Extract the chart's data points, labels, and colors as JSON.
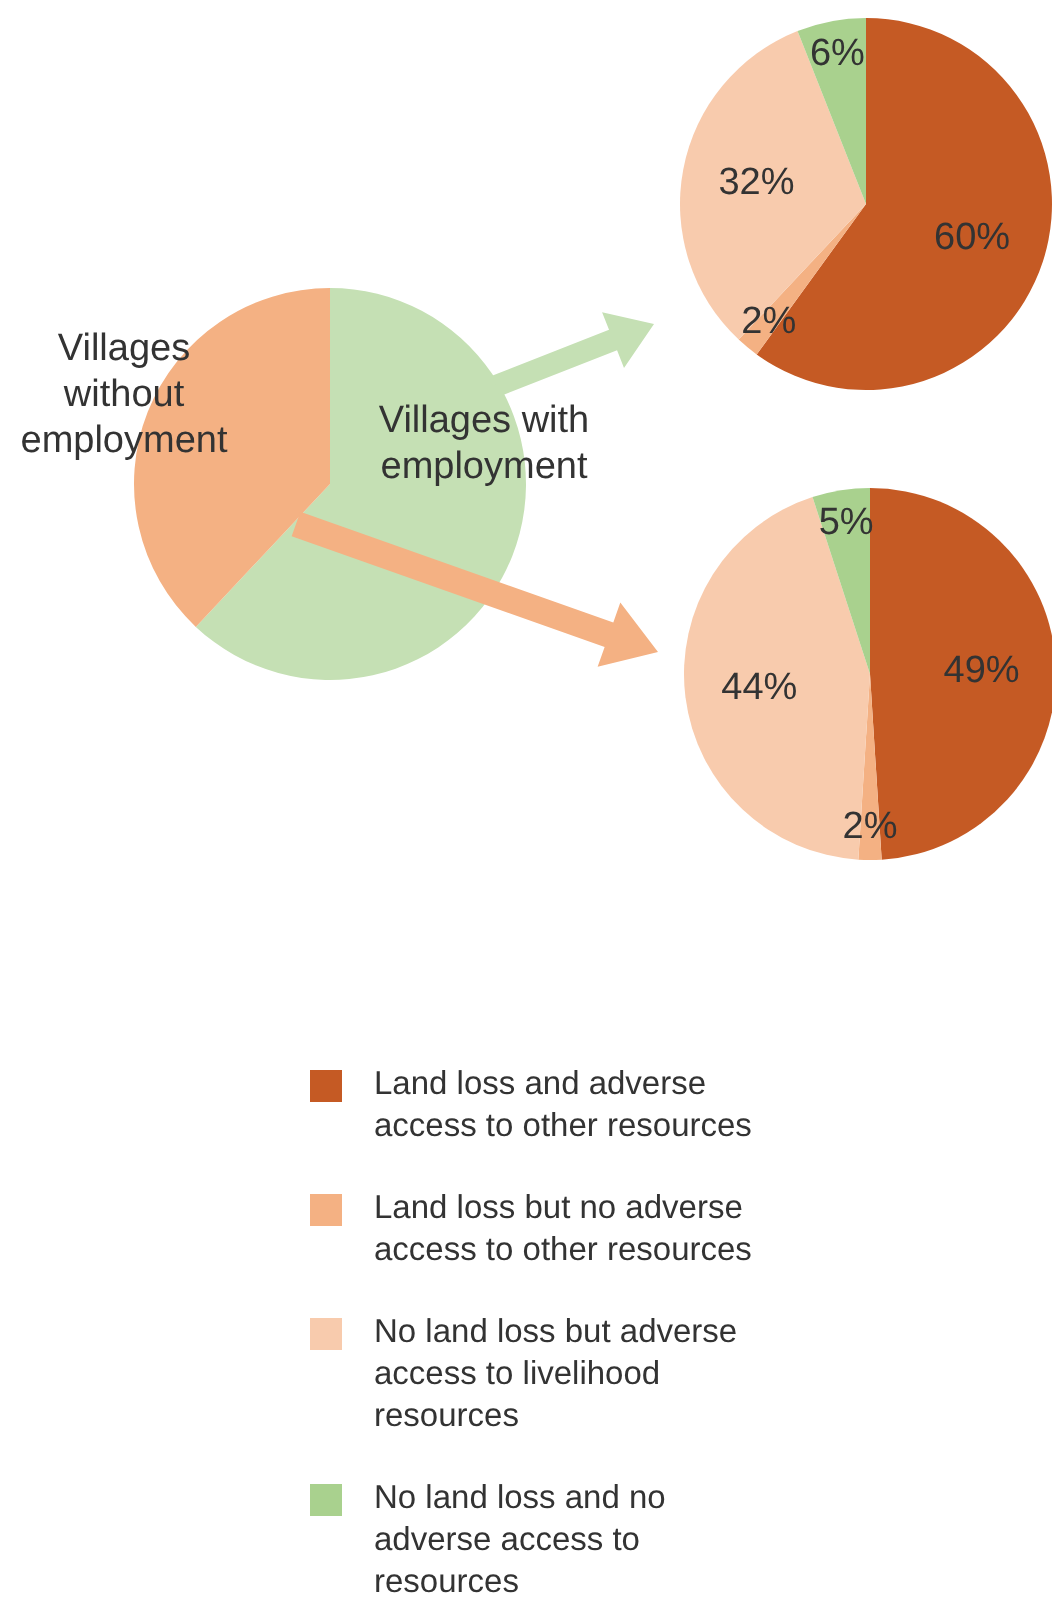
{
  "chart_data": [
    {
      "type": "pie",
      "categories": [
        "Villages with employment",
        "Villages without employment"
      ],
      "values": [
        62,
        38
      ],
      "colors": [
        "#c5e0b4",
        "#f4b183"
      ]
    },
    {
      "type": "pie",
      "categories": [
        "Land loss and adverse access to other resources",
        "Land loss but no adverse access to other resources",
        "No land loss but adverse access to livelihood resources",
        "No land loss and no adverse access to resources"
      ],
      "values": [
        60,
        2,
        32,
        6
      ],
      "colors": [
        "#c55a24",
        "#f4b183",
        "#f8cbad",
        "#a9d18e"
      ],
      "value_labels": [
        "60%",
        "2%",
        "32%",
        "6%"
      ],
      "legend": "bottom"
    },
    {
      "type": "pie",
      "categories": [
        null,
        null,
        null,
        null
      ],
      "values": [
        49,
        2,
        44,
        5
      ],
      "colors": [
        "#c55a24",
        "#f4b183",
        "#f8cbad",
        "#a9d18e"
      ],
      "value_labels": [
        "49%",
        "2%",
        "44%",
        "5%"
      ]
    }
  ]
}
